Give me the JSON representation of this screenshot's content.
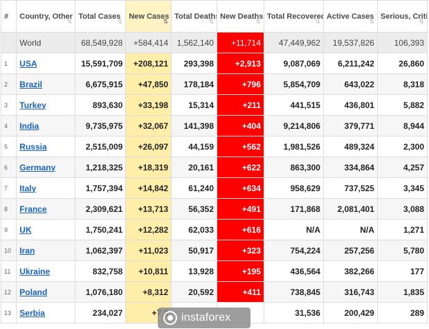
{
  "headers": [
    {
      "label": "#",
      "sort": ""
    },
    {
      "label": "Country, Other",
      "sort": "⇅"
    },
    {
      "label": "Total Cases",
      "sort": "⇅"
    },
    {
      "label": "New Cases",
      "sort": "⇅"
    },
    {
      "label": "Total Deaths",
      "sort": "⇅"
    },
    {
      "label": "New Deaths",
      "sort": "⇅"
    },
    {
      "label": "Total Recovered",
      "sort": "⇅"
    },
    {
      "label": "Active Cases",
      "sort": "⇅"
    },
    {
      "label": "Serious, Critical",
      "sort": "⇅"
    }
  ],
  "world": {
    "name": "World",
    "total_cases": "68,549,928",
    "new_cases": "+584,414",
    "total_deaths": "1,562,140",
    "new_deaths": "+11,714",
    "total_recovered": "47,449,962",
    "active_cases": "19,537,826",
    "serious": "106,393"
  },
  "rows": [
    {
      "idx": "1",
      "country": "USA",
      "total_cases": "15,591,709",
      "new_cases": "+208,121",
      "total_deaths": "293,398",
      "new_deaths": "+2,913",
      "total_recovered": "9,087,069",
      "active_cases": "6,211,242",
      "serious": "26,860"
    },
    {
      "idx": "2",
      "country": "Brazil",
      "total_cases": "6,675,915",
      "new_cases": "+47,850",
      "total_deaths": "178,184",
      "new_deaths": "+796",
      "total_recovered": "5,854,709",
      "active_cases": "643,022",
      "serious": "8,318"
    },
    {
      "idx": "3",
      "country": "Turkey",
      "total_cases": "893,630",
      "new_cases": "+33,198",
      "total_deaths": "15,314",
      "new_deaths": "+211",
      "total_recovered": "441,515",
      "active_cases": "436,801",
      "serious": "5,882"
    },
    {
      "idx": "4",
      "country": "India",
      "total_cases": "9,735,975",
      "new_cases": "+32,067",
      "total_deaths": "141,398",
      "new_deaths": "+404",
      "total_recovered": "9,214,806",
      "active_cases": "379,771",
      "serious": "8,944"
    },
    {
      "idx": "5",
      "country": "Russia",
      "total_cases": "2,515,009",
      "new_cases": "+26,097",
      "total_deaths": "44,159",
      "new_deaths": "+562",
      "total_recovered": "1,981,526",
      "active_cases": "489,324",
      "serious": "2,300"
    },
    {
      "idx": "6",
      "country": "Germany",
      "total_cases": "1,218,325",
      "new_cases": "+18,319",
      "total_deaths": "20,161",
      "new_deaths": "+622",
      "total_recovered": "863,300",
      "active_cases": "334,864",
      "serious": "4,257"
    },
    {
      "idx": "7",
      "country": "Italy",
      "total_cases": "1,757,394",
      "new_cases": "+14,842",
      "total_deaths": "61,240",
      "new_deaths": "+634",
      "total_recovered": "958,629",
      "active_cases": "737,525",
      "serious": "3,345"
    },
    {
      "idx": "8",
      "country": "France",
      "total_cases": "2,309,621",
      "new_cases": "+13,713",
      "total_deaths": "56,352",
      "new_deaths": "+491",
      "total_recovered": "171,868",
      "active_cases": "2,081,401",
      "serious": "3,088"
    },
    {
      "idx": "9",
      "country": "UK",
      "total_cases": "1,750,241",
      "new_cases": "+12,282",
      "total_deaths": "62,033",
      "new_deaths": "+616",
      "total_recovered": "N/A",
      "active_cases": "N/A",
      "serious": "1,271"
    },
    {
      "idx": "10",
      "country": "Iran",
      "total_cases": "1,062,397",
      "new_cases": "+11,023",
      "total_deaths": "50,917",
      "new_deaths": "+323",
      "total_recovered": "754,224",
      "active_cases": "257,256",
      "serious": "5,780"
    },
    {
      "idx": "11",
      "country": "Ukraine",
      "total_cases": "832,758",
      "new_cases": "+10,811",
      "total_deaths": "13,928",
      "new_deaths": "+195",
      "total_recovered": "436,564",
      "active_cases": "382,266",
      "serious": "177"
    },
    {
      "idx": "12",
      "country": "Poland",
      "total_cases": "1,076,180",
      "new_cases": "+8,312",
      "total_deaths": "20,592",
      "new_deaths": "+411",
      "total_recovered": "738,845",
      "active_cases": "316,743",
      "serious": "1,835"
    },
    {
      "idx": "13",
      "country": "Serbia",
      "total_cases": "234,027",
      "new_cases": "+7,8",
      "total_deaths": "",
      "new_deaths": "",
      "total_recovered": "31,536",
      "active_cases": "200,429",
      "serious": "289"
    }
  ],
  "watermark": {
    "text": "instaforex"
  },
  "colors": {
    "new_cases_bg": "#ffeeaa",
    "new_deaths_bg": "#ff0000",
    "link": "#1a62c6",
    "world_bg": "#ececec"
  }
}
